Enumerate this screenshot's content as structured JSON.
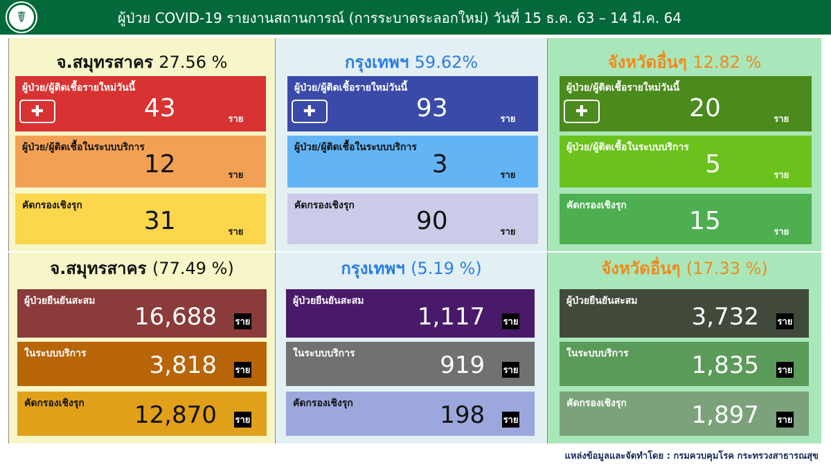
{
  "header": {
    "title": "ผู้ป่วย COVID-19 รายงานสถานการณ์ (การระบาดระลอกใหม่) วันที่ 15 ธ.ค. 63 – 14 มี.ค. 64",
    "logo_icon": "ministry-of-public-health-logo"
  },
  "unit": "ราย",
  "today": [
    {
      "name": "จ.สมุทรสาคร",
      "pct": "27.56 %",
      "bg": "#f6f6c8",
      "name_color": "#111111",
      "pct_color": "#111111",
      "rows": [
        {
          "label": "ผู้ป่วย/ผู้ติดเชื้อรายใหม่วันนี้",
          "value": "43",
          "color": "#d83232"
        },
        {
          "label": "ผู้ป่วย/ผู้ติดเชื้อในระบบบริการ",
          "value": "12",
          "color": "#f2a154",
          "text": "#111111"
        },
        {
          "label": "คัดกรองเชิงรุก",
          "value": "31",
          "color": "#fcd64b",
          "text": "#111111"
        }
      ]
    },
    {
      "name": "กรุงเทพฯ",
      "pct": "59.62%",
      "bg": "#e2f0f4",
      "name_color": "#2a7de1",
      "pct_color": "#2a7de1",
      "rows": [
        {
          "label": "ผู้ป่วย/ผู้ติดเชื้อรายใหม่วันนี้",
          "value": "93",
          "color": "#3a4aa8"
        },
        {
          "label": "ผู้ป่วย/ผู้ติดเชื้อในระบบบริการ",
          "value": "3",
          "color": "#63b4f4",
          "text": "#111111"
        },
        {
          "label": "คัดกรองเชิงรุก",
          "value": "90",
          "color": "#cbcbe9",
          "text": "#111111"
        }
      ]
    },
    {
      "name": "จังหวัดอื่นๆ",
      "pct": "12.82 %",
      "bg": "#a9e6b9",
      "name_color": "#f08a1c",
      "pct_color": "#f08a1c",
      "rows": [
        {
          "label": "ผู้ป่วย/ผู้ติดเชื้อรายใหม่วันนี้",
          "value": "20",
          "color": "#4b8a1c"
        },
        {
          "label": "ผู้ป่วย/ผู้ติดเชื้อในระบบบริการ",
          "value": "5",
          "color": "#6cc21c"
        },
        {
          "label": "คัดกรองเชิงรุก",
          "value": "15",
          "color": "#4daf50"
        }
      ]
    }
  ],
  "cumulative": [
    {
      "name": "จ.สมุทรสาคร",
      "pct": "(77.49 %)",
      "bg": "#f6f6c8",
      "name_color": "#111111",
      "pct_color": "#111111",
      "rows": [
        {
          "label": "ผู้ป่วยยืนยันสะสม",
          "value": "16,688",
          "color": "#8a3b3a"
        },
        {
          "label": "ในระบบบริการ",
          "value": "3,818",
          "color": "#b8650a"
        },
        {
          "label": "คัดกรองเชิงรุก",
          "value": "12,870",
          "color": "#e0a01a",
          "text": "#111111"
        }
      ]
    },
    {
      "name": "กรุงเทพฯ",
      "pct": "(5.19 %)",
      "bg": "#e2f0f4",
      "name_color": "#2a7de1",
      "pct_color": "#2a7de1",
      "rows": [
        {
          "label": "ผู้ป่วยยืนยันสะสม",
          "value": "1,117",
          "color": "#4a1a6a"
        },
        {
          "label": "ในระบบบริการ",
          "value": "919",
          "color": "#717171"
        },
        {
          "label": "คัดกรองเชิงรุก",
          "value": "198",
          "color": "#9ca7dd",
          "text": "#111111"
        }
      ]
    },
    {
      "name": "จังหวัดอื่นๆ",
      "pct": "(17.33 %)",
      "bg": "#a9e6b9",
      "name_color": "#f08a1c",
      "pct_color": "#f08a1c",
      "rows": [
        {
          "label": "ผู้ป่วยยืนยันสะสม",
          "value": "3,732",
          "color": "#414a3a"
        },
        {
          "label": "ในระบบบริการ",
          "value": "1,835",
          "color": "#5b9b5a"
        },
        {
          "label": "คัดกรองเชิงรุก",
          "value": "1,897",
          "color": "#7ba27a"
        }
      ]
    }
  ],
  "footer": "แหล่งข้อมูลและจัดทำโดย : กรมควบคุมโรค กระทรวงสาธารณสุข"
}
